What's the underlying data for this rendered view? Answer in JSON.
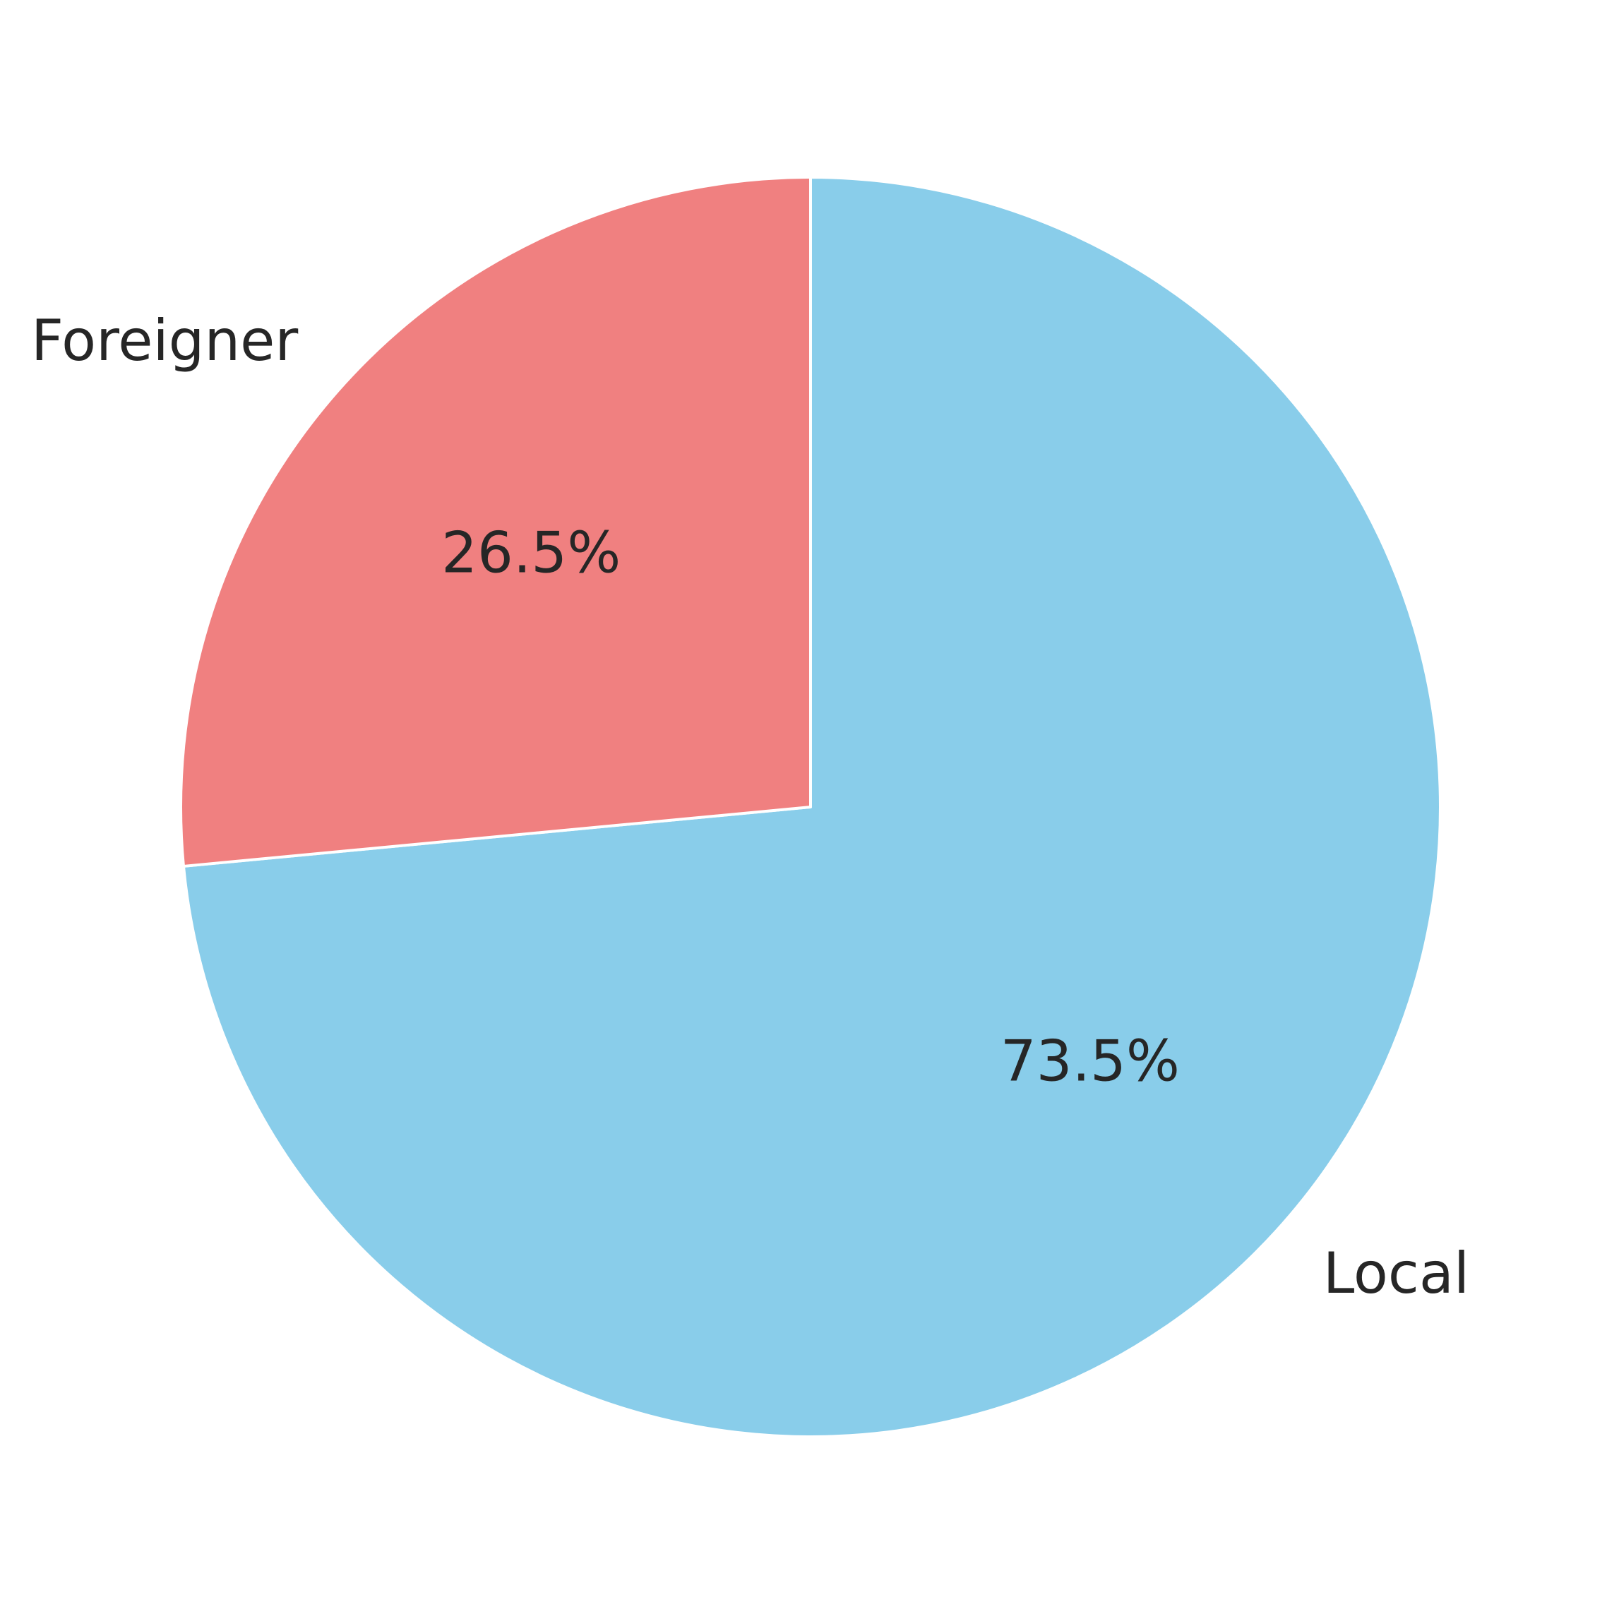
{
  "chart_data": {
    "type": "pie",
    "title": "",
    "labels": [
      "Local",
      "Foreigner"
    ],
    "values": [
      73.5,
      26.5
    ],
    "value_labels": [
      "73.5%",
      "26.5%"
    ],
    "colors": [
      "#89CDEA",
      "#F08080"
    ],
    "start_angle_deg": 90,
    "direction": "clockwise",
    "legend": "none"
  }
}
